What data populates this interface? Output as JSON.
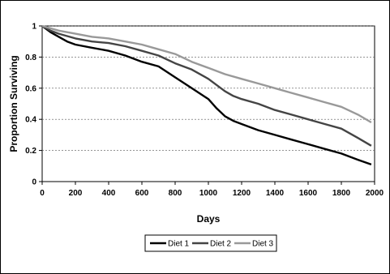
{
  "chart_data": {
    "type": "line",
    "title": "",
    "xlabel": "Days",
    "ylabel": "Proportion Surviving",
    "xlim": [
      0,
      2000
    ],
    "ylim": [
      0,
      1
    ],
    "x_ticks": [
      0,
      200,
      400,
      600,
      800,
      1000,
      1200,
      1400,
      1600,
      1800,
      2000
    ],
    "y_ticks": [
      0,
      0.2,
      0.4,
      0.6,
      0.8,
      1
    ],
    "y_tick_labels": [
      "0",
      "0.2",
      "0.4",
      "0.6",
      "0.8",
      "1"
    ],
    "grid": "horizontal-dashed",
    "legend_position": "bottom",
    "series": [
      {
        "name": "Diet 1",
        "color": "#000000",
        "x": [
          0,
          50,
          100,
          150,
          200,
          300,
          400,
          500,
          600,
          700,
          800,
          900,
          1000,
          1050,
          1100,
          1150,
          1200,
          1300,
          1400,
          1500,
          1600,
          1700,
          1800,
          1900,
          1980
        ],
        "values": [
          1.0,
          0.96,
          0.93,
          0.9,
          0.88,
          0.86,
          0.84,
          0.81,
          0.77,
          0.74,
          0.67,
          0.6,
          0.53,
          0.47,
          0.42,
          0.39,
          0.37,
          0.33,
          0.3,
          0.27,
          0.24,
          0.21,
          0.18,
          0.14,
          0.11
        ]
      },
      {
        "name": "Diet 2",
        "color": "#444444",
        "x": [
          0,
          50,
          100,
          200,
          300,
          400,
          500,
          600,
          700,
          800,
          900,
          1000,
          1100,
          1150,
          1200,
          1300,
          1400,
          1500,
          1600,
          1700,
          1800,
          1900,
          1980
        ],
        "values": [
          1.0,
          0.97,
          0.95,
          0.92,
          0.9,
          0.89,
          0.87,
          0.84,
          0.81,
          0.76,
          0.72,
          0.66,
          0.58,
          0.55,
          0.53,
          0.5,
          0.46,
          0.43,
          0.4,
          0.37,
          0.34,
          0.28,
          0.23
        ]
      },
      {
        "name": "Diet 3",
        "color": "#999999",
        "x": [
          0,
          100,
          200,
          300,
          400,
          500,
          600,
          700,
          800,
          900,
          1000,
          1100,
          1200,
          1300,
          1400,
          1500,
          1600,
          1700,
          1800,
          1900,
          1980
        ],
        "values": [
          1.0,
          0.97,
          0.95,
          0.93,
          0.92,
          0.9,
          0.88,
          0.85,
          0.82,
          0.77,
          0.73,
          0.69,
          0.66,
          0.63,
          0.6,
          0.57,
          0.54,
          0.51,
          0.48,
          0.43,
          0.38
        ]
      }
    ]
  }
}
